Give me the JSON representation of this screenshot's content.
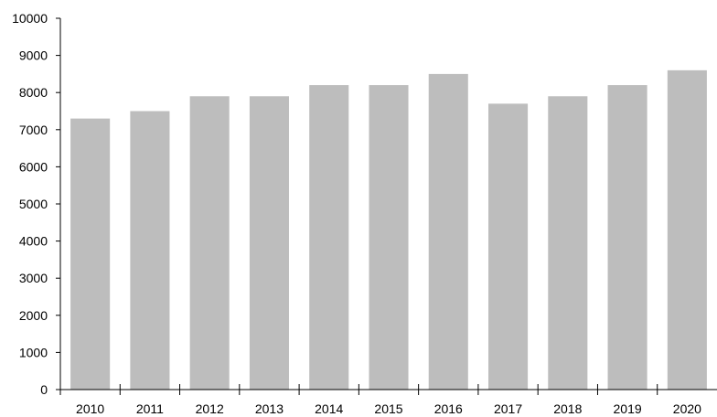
{
  "chart_data": {
    "type": "bar",
    "title": "",
    "xlabel": "",
    "ylabel": "",
    "categories": [
      "2010",
      "2011",
      "2012",
      "2013",
      "2014",
      "2015",
      "2016",
      "2017",
      "2018",
      "2019",
      "2020"
    ],
    "values": [
      7300,
      7500,
      7900,
      7900,
      8200,
      8200,
      8500,
      7700,
      7900,
      8200,
      8600
    ],
    "ylim": [
      0,
      10000
    ],
    "yticks": [
      0,
      1000,
      2000,
      3000,
      4000,
      5000,
      6000,
      7000,
      8000,
      9000,
      10000
    ],
    "grid": false,
    "legend": "none",
    "colors": {
      "bar": "#bdbdbd",
      "axis": "#000000",
      "text": "#000000"
    }
  }
}
